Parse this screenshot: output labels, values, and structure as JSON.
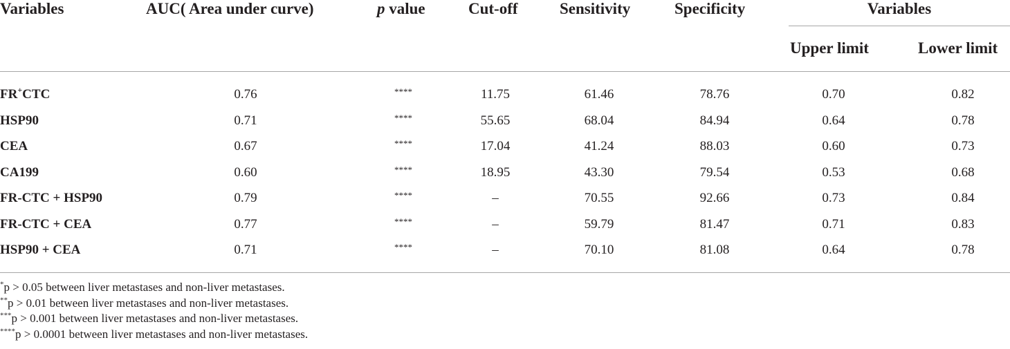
{
  "header": {
    "variables": "Variables",
    "auc": "AUC( Area under curve)",
    "p_italic": "p",
    "p_rest": " value",
    "cutoff": "Cut-off",
    "sensitivity": "Sensitivity",
    "specificity": "Specificity",
    "group": "Variables",
    "upper": "Upper limit",
    "lower": "Lower limit"
  },
  "rows": [
    {
      "label_main": "FR",
      "label_sup": "+",
      "label_rest": "CTC",
      "auc": "0.76",
      "p": "****",
      "cutoff": "11.75",
      "sensitivity": "61.46",
      "specificity": "78.76",
      "upper": "0.70",
      "lower": "0.82"
    },
    {
      "label_main": "HSP90",
      "label_sup": "",
      "label_rest": "",
      "auc": "0.71",
      "p": "****",
      "cutoff": "55.65",
      "sensitivity": "68.04",
      "specificity": "84.94",
      "upper": "0.64",
      "lower": "0.78"
    },
    {
      "label_main": "CEA",
      "label_sup": "",
      "label_rest": "",
      "auc": "0.67",
      "p": "****",
      "cutoff": "17.04",
      "sensitivity": "41.24",
      "specificity": "88.03",
      "upper": "0.60",
      "lower": "0.73"
    },
    {
      "label_main": "CA199",
      "label_sup": "",
      "label_rest": "",
      "auc": "0.60",
      "p": "****",
      "cutoff": "18.95",
      "sensitivity": "43.30",
      "specificity": "79.54",
      "upper": "0.53",
      "lower": "0.68"
    },
    {
      "label_main": "FR-CTC + HSP90",
      "label_sup": "",
      "label_rest": "",
      "auc": "0.79",
      "p": "****",
      "cutoff": "–",
      "sensitivity": "70.55",
      "specificity": "92.66",
      "upper": "0.73",
      "lower": "0.84"
    },
    {
      "label_main": "FR-CTC + CEA",
      "label_sup": "",
      "label_rest": "",
      "auc": "0.77",
      "p": "****",
      "cutoff": "–",
      "sensitivity": "59.79",
      "specificity": "81.47",
      "upper": "0.71",
      "lower": "0.83"
    },
    {
      "label_main": "HSP90 + CEA",
      "label_sup": "",
      "label_rest": "",
      "auc": "0.71",
      "p": "****",
      "cutoff": "–",
      "sensitivity": "70.10",
      "specificity": "81.08",
      "upper": "0.64",
      "lower": "0.78"
    }
  ],
  "footnotes": [
    {
      "sym": "*",
      "text": "p > 0.05 between liver metastases and non-liver metastases."
    },
    {
      "sym": "**",
      "text": "p > 0.01 between liver metastases and non-liver metastases."
    },
    {
      "sym": "***",
      "text": "p > 0.001 between liver metastases and non-liver metastases."
    },
    {
      "sym": "****",
      "text": "p > 0.0001 between liver metastases and non-liver metastases."
    }
  ]
}
